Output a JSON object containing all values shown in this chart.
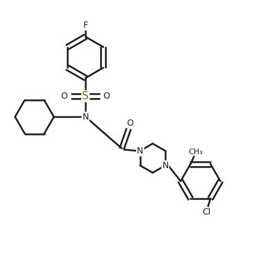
{
  "bg_color": "#ffffff",
  "line_color": "#1a1a1a",
  "s_color": "#8B6914",
  "bond_width": 1.8,
  "font_size": 9,
  "figsize": [
    3.86,
    3.96
  ],
  "dpi": 100,
  "xlim": [
    0,
    11
  ],
  "ylim": [
    0,
    11
  ]
}
